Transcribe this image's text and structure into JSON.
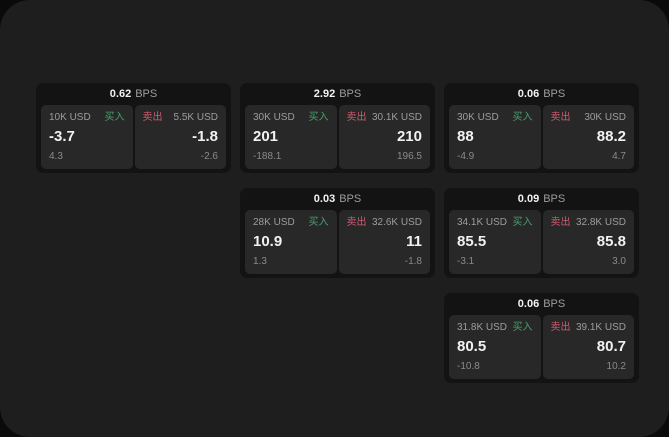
{
  "labels": {
    "bps_unit": "BPS",
    "buy": "买入",
    "sell": "卖出"
  },
  "colors": {
    "bg-panel": "#1e1e1e",
    "bg-card": "#131313",
    "bg-tile": "#282828",
    "txt-white": "#f2f2f2",
    "txt-gray": "#9d9d9d",
    "txt-dim": "#8a8a8a",
    "buy": "#47a06c",
    "sell": "#cf5a6e"
  },
  "cards": [
    {
      "row": 1,
      "col": 1,
      "bps": "0.62",
      "buy": {
        "size": "10K USD",
        "price": "-3.7",
        "delta": "4.3"
      },
      "sell": {
        "size": "5.5K USD",
        "price": "-1.8",
        "delta": "-2.6"
      }
    },
    {
      "row": 1,
      "col": 2,
      "bps": "2.92",
      "buy": {
        "size": "30K USD",
        "price": "201",
        "delta": "-188.1"
      },
      "sell": {
        "size": "30.1K USD",
        "price": "210",
        "delta": "196.5"
      }
    },
    {
      "row": 1,
      "col": 3,
      "bps": "0.06",
      "buy": {
        "size": "30K USD",
        "price": "88",
        "delta": "-4.9"
      },
      "sell": {
        "size": "30K USD",
        "price": "88.2",
        "delta": "4.7"
      }
    },
    {
      "row": 2,
      "col": 2,
      "bps": "0.03",
      "buy": {
        "size": "28K USD",
        "price": "10.9",
        "delta": "1.3"
      },
      "sell": {
        "size": "32.6K USD",
        "price": "11",
        "delta": "-1.8"
      }
    },
    {
      "row": 2,
      "col": 3,
      "bps": "0.09",
      "buy": {
        "size": "34.1K USD",
        "price": "85.5",
        "delta": "-3.1"
      },
      "sell": {
        "size": "32.8K USD",
        "price": "85.8",
        "delta": "3.0"
      }
    },
    {
      "row": 3,
      "col": 3,
      "bps": "0.06",
      "buy": {
        "size": "31.8K USD",
        "price": "80.5",
        "delta": "-10.8"
      },
      "sell": {
        "size": "39.1K USD",
        "price": "80.7",
        "delta": "10.2"
      }
    }
  ]
}
